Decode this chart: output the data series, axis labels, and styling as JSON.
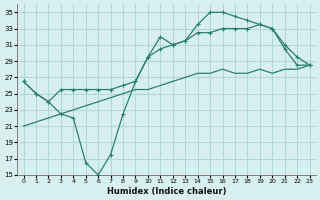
{
  "xlabel": "Humidex (Indice chaleur)",
  "background_color": "#d8eff0",
  "grid_color": "#b0d8d8",
  "line_color": "#2e7d72",
  "xlim": [
    -0.5,
    23.5
  ],
  "ylim": [
    15,
    36
  ],
  "xticks": [
    0,
    1,
    2,
    3,
    4,
    5,
    6,
    7,
    8,
    9,
    10,
    11,
    12,
    13,
    14,
    15,
    16,
    17,
    18,
    19,
    20,
    21,
    22,
    23
  ],
  "yticks": [
    15,
    17,
    19,
    21,
    23,
    25,
    27,
    29,
    31,
    33,
    35
  ],
  "line1_x": [
    0,
    1,
    2,
    3,
    4,
    5,
    6,
    7,
    8,
    9,
    10,
    11,
    12,
    13,
    14,
    15,
    16,
    17,
    18,
    19,
    20,
    21,
    22,
    23
  ],
  "line1_y": [
    26.5,
    25.0,
    24.0,
    22.5,
    22.0,
    16.5,
    15.0,
    17.5,
    22.5,
    26.5,
    29.5,
    32.0,
    31.0,
    31.5,
    33.5,
    35.0,
    35.0,
    34.5,
    34.0,
    33.5,
    33.0,
    30.5,
    28.5,
    28.5
  ],
  "line2_x": [
    0,
    1,
    2,
    3,
    4,
    5,
    6,
    7,
    8,
    9,
    10,
    11,
    12,
    13,
    14,
    15,
    16,
    17,
    18,
    19,
    20,
    21,
    22,
    23
  ],
  "line2_y": [
    26.5,
    25.0,
    24.0,
    25.5,
    25.5,
    25.5,
    25.5,
    25.5,
    26.0,
    26.5,
    29.5,
    30.5,
    31.0,
    31.5,
    32.5,
    32.5,
    33.0,
    33.0,
    33.0,
    33.5,
    33.0,
    31.0,
    29.5,
    28.5
  ],
  "line3_x": [
    0,
    1,
    2,
    3,
    4,
    5,
    6,
    7,
    8,
    9,
    10,
    11,
    12,
    13,
    14,
    15,
    16,
    17,
    18,
    19,
    20,
    21,
    22,
    23
  ],
  "line3_y": [
    21.0,
    21.5,
    22.0,
    22.5,
    23.0,
    23.5,
    24.0,
    24.5,
    25.0,
    25.5,
    25.5,
    26.0,
    26.5,
    27.0,
    27.5,
    27.5,
    28.0,
    27.5,
    27.5,
    28.0,
    27.5,
    28.0,
    28.0,
    28.5
  ]
}
